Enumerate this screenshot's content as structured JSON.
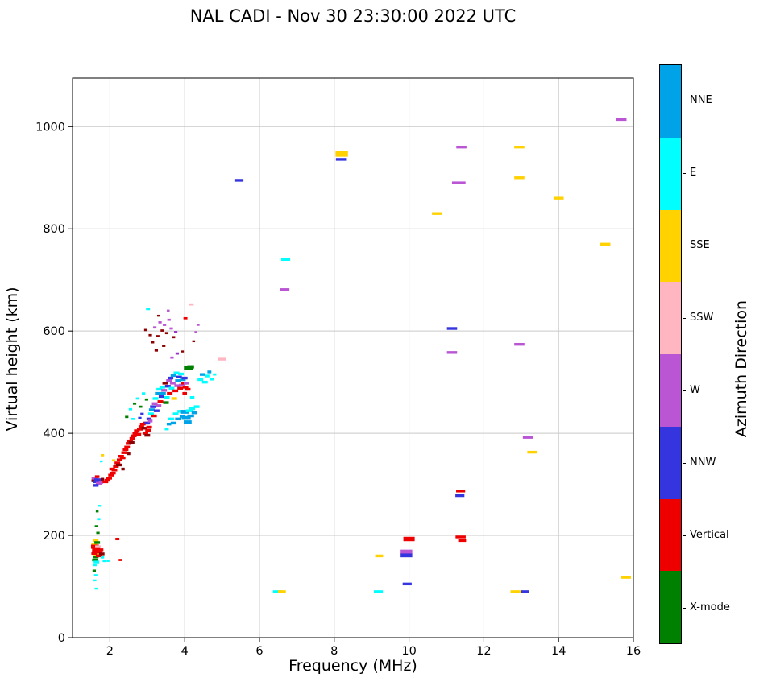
{
  "chart_data": {
    "type": "scatter",
    "title": "NAL CADI - Nov 30 23:30:00 2022 UTC",
    "xlabel": "Frequency (MHz)",
    "ylabel": "Virtual height (km)",
    "xlim": [
      1,
      16
    ],
    "ylim": [
      0,
      1095
    ],
    "xticks": [
      2,
      4,
      6,
      8,
      10,
      12,
      14,
      16
    ],
    "yticks": [
      0,
      200,
      400,
      600,
      800,
      1000
    ],
    "grid": true,
    "grid_color": "#c9c9c9",
    "marker": {
      "width": 7,
      "height": 3.4
    },
    "palette": {
      "nne": "#00a2e8",
      "e": "#00ffff",
      "sse": "#ffd200",
      "ssw": "#ffb6c1",
      "w": "#ba55d3",
      "dviolet": "#9932cc",
      "nnw": "#3535e0",
      "vertical": "#ee0000",
      "maroon": "#8b0000",
      "xmode": "#008000"
    },
    "colorbar": {
      "label": "Azimuth Direction",
      "categories": [
        {
          "label": "NNE",
          "color": "#00a2e8"
        },
        {
          "label": "E",
          "color": "#00ffff"
        },
        {
          "label": "SSE",
          "color": "#ffd200"
        },
        {
          "label": "SSW",
          "color": "#ffb6c1"
        },
        {
          "label": "W",
          "color": "#ba55d3"
        },
        {
          "label": "NNW",
          "color": "#3535e0"
        },
        {
          "label": "Vertical",
          "color": "#ee0000"
        },
        {
          "label": "X-mode",
          "color": "#008000"
        }
      ]
    },
    "points": [
      [
        1.58,
        182,
        "sse"
      ],
      [
        1.6,
        178,
        "vertical",
        1.4,
        1.5
      ],
      [
        1.63,
        172,
        "vertical",
        1.4,
        1.5
      ],
      [
        1.6,
        168,
        "vertical"
      ],
      [
        1.64,
        163,
        "sse"
      ],
      [
        1.58,
        165,
        "vertical"
      ],
      [
        1.62,
        158,
        "xmode"
      ],
      [
        1.66,
        170,
        "vertical"
      ],
      [
        1.68,
        178,
        "ssw"
      ],
      [
        1.6,
        152,
        "xmode"
      ],
      [
        1.64,
        148,
        "e"
      ],
      [
        1.7,
        160,
        "vertical"
      ],
      [
        1.72,
        168,
        "vertical"
      ],
      [
        1.75,
        172,
        "vertical"
      ],
      [
        1.78,
        164,
        "maroon"
      ],
      [
        1.8,
        157,
        "e",
        0.6,
        0.8
      ],
      [
        1.85,
        150,
        "e",
        0.6,
        0.8
      ],
      [
        1.62,
        190,
        "sse"
      ],
      [
        1.66,
        186,
        "xmode"
      ],
      [
        1.6,
        142,
        "e",
        0.6,
        0.8
      ],
      [
        1.58,
        131,
        "xmode",
        0.6,
        0.8
      ],
      [
        1.62,
        122,
        "e",
        0.6,
        0.8
      ],
      [
        1.6,
        112,
        "e",
        0.5,
        0.7
      ],
      [
        1.63,
        96,
        "e",
        0.5,
        0.7
      ],
      [
        1.68,
        205,
        "xmode",
        0.6,
        0.8
      ],
      [
        1.64,
        218,
        "xmode",
        0.6,
        0.8
      ],
      [
        1.7,
        232,
        "e",
        0.6,
        0.8
      ],
      [
        1.66,
        247,
        "xmode",
        0.5,
        0.7
      ],
      [
        1.72,
        258,
        "e",
        0.5,
        0.7
      ],
      [
        1.95,
        150,
        "e",
        0.5,
        0.7
      ],
      [
        2.2,
        193,
        "vertical",
        0.7,
        0.9
      ],
      [
        2.28,
        152,
        "vertical",
        0.6,
        0.8
      ],
      [
        1.56,
        307,
        "maroon",
        0.7
      ],
      [
        1.6,
        312,
        "w",
        1.2
      ],
      [
        1.63,
        305,
        "nnw",
        1.2
      ],
      [
        1.67,
        309,
        "nnw",
        1.2
      ],
      [
        1.7,
        302,
        "w"
      ],
      [
        1.73,
        307,
        "nnw"
      ],
      [
        1.62,
        298,
        "nnw"
      ],
      [
        1.66,
        315,
        "vertical",
        0.8
      ],
      [
        1.76,
        304,
        "w",
        0.8
      ],
      [
        1.8,
        310,
        "maroon",
        0.6
      ],
      [
        1.8,
        357,
        "sse",
        0.6,
        0.8
      ],
      [
        1.77,
        345,
        "e",
        0.5,
        0.7
      ],
      [
        1.88,
        305,
        "vertical"
      ],
      [
        1.93,
        308,
        "vertical"
      ],
      [
        1.98,
        312,
        "vertical"
      ],
      [
        2.03,
        318,
        "vertical"
      ],
      [
        2.08,
        322,
        "vertical"
      ],
      [
        2.06,
        330,
        "vertical"
      ],
      [
        2.12,
        328,
        "vertical"
      ],
      [
        2.16,
        335,
        "vertical"
      ],
      [
        2.2,
        342,
        "vertical"
      ],
      [
        2.24,
        338,
        "maroon"
      ],
      [
        2.26,
        348,
        "vertical"
      ],
      [
        2.3,
        355,
        "vertical"
      ],
      [
        2.34,
        352,
        "vertical"
      ],
      [
        2.38,
        362,
        "vertical"
      ],
      [
        2.42,
        368,
        "vertical"
      ],
      [
        2.46,
        373,
        "vertical"
      ],
      [
        2.5,
        380,
        "vertical"
      ],
      [
        2.54,
        385,
        "vertical"
      ],
      [
        2.58,
        382,
        "maroon"
      ],
      [
        2.6,
        390,
        "vertical"
      ],
      [
        2.64,
        395,
        "vertical"
      ],
      [
        2.68,
        400,
        "vertical"
      ],
      [
        2.72,
        405,
        "vertical"
      ],
      [
        2.76,
        398,
        "vertical"
      ],
      [
        2.8,
        408,
        "vertical"
      ],
      [
        2.84,
        413,
        "vertical"
      ],
      [
        2.88,
        418,
        "vertical"
      ],
      [
        2.92,
        410,
        "maroon"
      ],
      [
        2.96,
        420,
        "vertical"
      ],
      [
        2.35,
        330,
        "maroon",
        0.6
      ],
      [
        2.5,
        360,
        "maroon",
        0.6
      ],
      [
        2.1,
        347,
        "sse",
        0.6,
        0.8
      ],
      [
        2.45,
        432,
        "xmode",
        0.6,
        0.8
      ],
      [
        2.55,
        447,
        "e",
        0.6,
        0.8
      ],
      [
        2.62,
        428,
        "e",
        0.6,
        0.8
      ],
      [
        2.66,
        458,
        "xmode",
        0.6,
        0.8
      ],
      [
        2.74,
        468,
        "e",
        0.6,
        0.8
      ],
      [
        2.82,
        452,
        "xmode",
        0.6,
        0.8
      ],
      [
        2.9,
        478,
        "e",
        0.6,
        0.8
      ],
      [
        2.98,
        466,
        "xmode",
        0.6,
        0.8
      ],
      [
        2.8,
        430,
        "nnw",
        0.6,
        0.8
      ],
      [
        2.86,
        438,
        "nnw",
        0.6,
        0.8
      ],
      [
        2.95,
        400,
        "vertical"
      ],
      [
        3.0,
        396,
        "maroon"
      ],
      [
        3.02,
        406,
        "vertical"
      ],
      [
        3.05,
        412,
        "vertical"
      ],
      [
        3.0,
        420,
        "nnw"
      ],
      [
        3.04,
        428,
        "nnw",
        0.8
      ],
      [
        3.08,
        424,
        "w",
        0.8
      ],
      [
        3.1,
        438,
        "e"
      ],
      [
        3.12,
        446,
        "nne"
      ],
      [
        3.15,
        452,
        "nnw"
      ],
      [
        3.18,
        434,
        "vertical"
      ],
      [
        3.2,
        458,
        "w"
      ],
      [
        3.22,
        468,
        "e"
      ],
      [
        3.25,
        444,
        "nnw"
      ],
      [
        3.28,
        478,
        "nne"
      ],
      [
        3.3,
        454,
        "w"
      ],
      [
        3.32,
        486,
        "e"
      ],
      [
        3.35,
        462,
        "vertical"
      ],
      [
        3.38,
        472,
        "nnw"
      ],
      [
        3.4,
        490,
        "e"
      ],
      [
        3.42,
        478,
        "nne"
      ],
      [
        3.45,
        484,
        "w"
      ],
      [
        3.48,
        498,
        "maroon"
      ],
      [
        3.5,
        460,
        "xmode"
      ],
      [
        3.52,
        470,
        "e"
      ],
      [
        3.55,
        492,
        "nnw"
      ],
      [
        3.58,
        503,
        "w"
      ],
      [
        3.6,
        478,
        "vertical"
      ],
      [
        3.62,
        508,
        "nnw"
      ],
      [
        3.65,
        488,
        "e"
      ],
      [
        3.68,
        498,
        "w"
      ],
      [
        3.7,
        513,
        "nne"
      ],
      [
        3.72,
        468,
        "sse"
      ],
      [
        3.75,
        483,
        "vertical"
      ],
      [
        3.78,
        518,
        "e"
      ],
      [
        3.8,
        493,
        "w"
      ],
      [
        3.82,
        503,
        "nne"
      ],
      [
        3.85,
        510,
        "nnw"
      ],
      [
        3.88,
        488,
        "vertical"
      ],
      [
        3.9,
        516,
        "e"
      ],
      [
        3.92,
        494,
        "w"
      ],
      [
        3.95,
        505,
        "nne"
      ],
      [
        3.98,
        498,
        "vertical"
      ],
      [
        4.0,
        508,
        "nnw"
      ],
      [
        4.02,
        490,
        "vertical"
      ],
      [
        4.05,
        498,
        "w"
      ],
      [
        4.08,
        486,
        "vertical"
      ],
      [
        3.52,
        408,
        "e",
        0.7,
        0.8
      ],
      [
        3.58,
        418,
        "nne",
        0.8
      ],
      [
        3.64,
        428,
        "e"
      ],
      [
        3.7,
        420,
        "nne"
      ],
      [
        3.76,
        438,
        "e"
      ],
      [
        3.82,
        428,
        "nne"
      ],
      [
        3.88,
        443,
        "e"
      ],
      [
        3.94,
        433,
        "nne"
      ],
      [
        4.0,
        442,
        "nne",
        1.6,
        1.4
      ],
      [
        4.04,
        430,
        "nne",
        1.6,
        1.4
      ],
      [
        4.08,
        422,
        "nne",
        1.4,
        1.2
      ],
      [
        4.12,
        444,
        "e",
        1.2
      ],
      [
        4.16,
        434,
        "nne",
        1.2
      ],
      [
        4.2,
        448,
        "e"
      ],
      [
        4.26,
        440,
        "nne"
      ],
      [
        4.32,
        452,
        "e"
      ],
      [
        4.1,
        528,
        "xmode",
        1.6,
        1.6
      ],
      [
        4.16,
        530,
        "xmode",
        1.2,
        1.2
      ],
      [
        4.0,
        478,
        "vertical",
        0.8
      ],
      [
        4.2,
        470,
        "e",
        0.8
      ],
      [
        4.02,
        625,
        "vertical",
        0.7,
        0.8
      ],
      [
        4.18,
        652,
        "ssw",
        0.8,
        0.8
      ],
      [
        5.0,
        545,
        "ssw",
        1.4
      ],
      [
        3.02,
        643,
        "e",
        0.7,
        0.8
      ],
      [
        2.96,
        602,
        "maroon",
        0.6,
        0.8
      ],
      [
        3.08,
        592,
        "maroon",
        0.6,
        0.8
      ],
      [
        3.14,
        578,
        "maroon",
        0.6,
        0.8
      ],
      [
        3.2,
        607,
        "w",
        0.6,
        0.8
      ],
      [
        3.28,
        590,
        "maroon",
        0.6,
        0.8
      ],
      [
        3.34,
        617,
        "w",
        0.6,
        0.8
      ],
      [
        3.4,
        601,
        "maroon",
        0.6,
        0.8
      ],
      [
        3.46,
        612,
        "w",
        0.6,
        0.8
      ],
      [
        3.52,
        596,
        "maroon",
        0.6,
        0.8
      ],
      [
        3.58,
        622,
        "w",
        0.6,
        0.8
      ],
      [
        3.24,
        562,
        "maroon",
        0.6,
        0.8
      ],
      [
        3.44,
        571,
        "maroon",
        0.6,
        0.8
      ],
      [
        3.64,
        605,
        "w",
        0.6,
        0.8
      ],
      [
        3.7,
        588,
        "maroon",
        0.6,
        0.8
      ],
      [
        3.76,
        598,
        "dviolet",
        0.6,
        0.8
      ],
      [
        3.56,
        640,
        "w",
        0.5,
        0.7
      ],
      [
        3.3,
        630,
        "maroon",
        0.5,
        0.7
      ],
      [
        3.66,
        548,
        "w",
        0.6,
        0.8
      ],
      [
        3.8,
        556,
        "dviolet",
        0.6,
        0.8
      ],
      [
        3.94,
        560,
        "maroon",
        0.5,
        0.7
      ],
      [
        4.24,
        580,
        "maroon",
        0.5,
        0.7
      ],
      [
        4.3,
        598,
        "w",
        0.5,
        0.7
      ],
      [
        4.36,
        612,
        "w",
        0.5,
        0.7
      ],
      [
        4.42,
        505,
        "e"
      ],
      [
        4.48,
        515,
        "nne"
      ],
      [
        4.54,
        500,
        "e"
      ],
      [
        4.6,
        512,
        "e",
        0.8
      ],
      [
        4.66,
        520,
        "nne",
        0.7
      ],
      [
        4.72,
        506,
        "e",
        0.7
      ],
      [
        4.8,
        515,
        "e",
        0.6,
        0.8
      ],
      [
        5.45,
        895,
        "nnw",
        1.6
      ],
      [
        6.7,
        740,
        "e",
        1.6
      ],
      [
        6.68,
        681,
        "w",
        1.6
      ],
      [
        8.2,
        947,
        "sse",
        2.2,
        2.2
      ],
      [
        8.18,
        936,
        "nnw",
        1.8
      ],
      [
        10.75,
        830,
        "sse",
        1.8
      ],
      [
        11.4,
        960,
        "w",
        1.8
      ],
      [
        11.33,
        890,
        "w",
        2.4
      ],
      [
        12.95,
        960,
        "sse",
        1.8
      ],
      [
        12.95,
        900,
        "sse",
        1.8
      ],
      [
        14.0,
        860,
        "sse",
        1.8
      ],
      [
        15.25,
        770,
        "sse",
        1.8
      ],
      [
        15.68,
        1014,
        "w",
        1.8
      ],
      [
        11.15,
        605,
        "nnw",
        1.8
      ],
      [
        11.15,
        558,
        "w",
        1.8
      ],
      [
        12.95,
        574,
        "w",
        1.8
      ],
      [
        13.18,
        392,
        "w",
        1.8
      ],
      [
        13.3,
        363,
        "sse",
        1.8
      ],
      [
        11.38,
        287,
        "vertical",
        1.6
      ],
      [
        11.36,
        278,
        "nnw",
        1.6
      ],
      [
        11.38,
        197,
        "vertical",
        1.8
      ],
      [
        11.42,
        190,
        "vertical",
        1.4
      ],
      [
        10.0,
        193,
        "vertical",
        2.0,
        1.6
      ],
      [
        9.92,
        168,
        "w",
        2.2,
        1.6
      ],
      [
        9.92,
        161,
        "nnw",
        2.2,
        1.4
      ],
      [
        9.2,
        160,
        "sse",
        1.4
      ],
      [
        9.95,
        105,
        "nnw",
        1.6
      ],
      [
        9.18,
        90,
        "e",
        1.6
      ],
      [
        6.48,
        90,
        "e",
        1.6
      ],
      [
        6.6,
        90,
        "sse",
        1.4
      ],
      [
        12.85,
        90,
        "sse",
        1.8
      ],
      [
        13.1,
        90,
        "nnw",
        1.4
      ],
      [
        15.8,
        118,
        "sse",
        1.8
      ]
    ]
  }
}
